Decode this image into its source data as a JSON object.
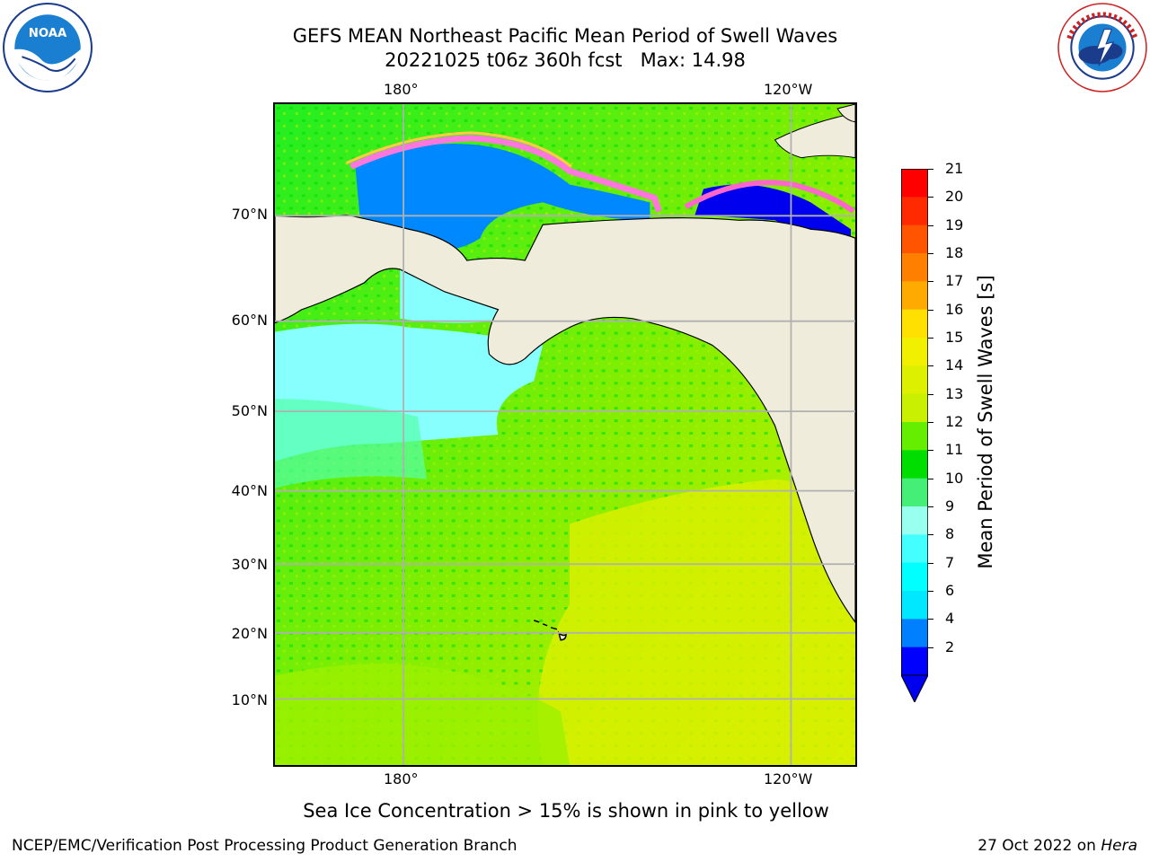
{
  "header": {
    "title": "GEFS MEAN Northeast Pacific Mean Period of Swell Waves",
    "subtitle": "20221025 t06z 360h fcst   Max: 14.98"
  },
  "logos": {
    "left": {
      "text": "NOAA",
      "ring": "NATIONAL OCEANIC AND ATMOSPHERIC ADMINISTRATION · U.S. DEPARTMENT OF COMMERCE"
    },
    "right": {
      "ring": "NATIONAL WEATHER SERVICE"
    }
  },
  "map": {
    "lon_labels": [
      "180°",
      "120°W"
    ],
    "lat_labels": [
      "70°N",
      "60°N",
      "50°N",
      "40°N",
      "30°N",
      "20°N",
      "10°N"
    ],
    "land_color": "#efecdc",
    "grid_color": "#b0b0b0"
  },
  "colorbar": {
    "label": "Mean Period of Swell Waves [s]",
    "ticks": [
      "21",
      "20",
      "19",
      "18",
      "17",
      "16",
      "15",
      "14",
      "13",
      "12",
      "11",
      "10",
      "9",
      "8",
      "7",
      "6",
      "4",
      "2"
    ],
    "colors": [
      "#ff0000",
      "#ff2a00",
      "#ff5500",
      "#ff8000",
      "#ffaa00",
      "#ffe000",
      "#f0f000",
      "#dcf000",
      "#c8f000",
      "#66ee00",
      "#00dd00",
      "#44ee77",
      "#99ffee",
      "#44ffff",
      "#00ffff",
      "#00e8ff",
      "#0080ff",
      "#0000ff"
    ],
    "extend_color": "#0000ee"
  },
  "caption": "Sea Ice Concentration > 15% is shown in pink to yellow",
  "footer": {
    "left": "NCEP/EMC/Verification Post Processing Product Generation Branch",
    "right_prefix": "27 Oct 2022 on ",
    "right_host": "Hera"
  }
}
